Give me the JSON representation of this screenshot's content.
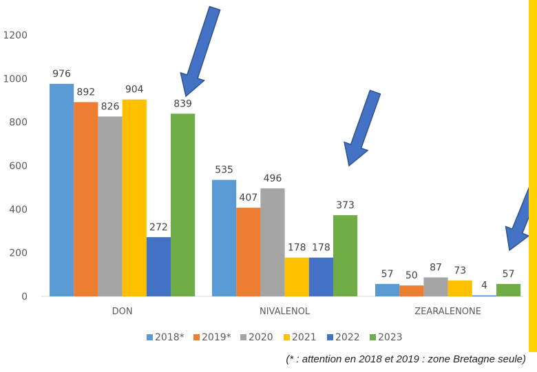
{
  "chart_data": {
    "type": "bar",
    "title": "",
    "xlabel": "",
    "ylabel": "",
    "ylim": [
      0,
      1200
    ],
    "yticks": [
      0,
      200,
      400,
      600,
      800,
      1000,
      1200
    ],
    "grid": false,
    "legend_position": "bottom",
    "categories": [
      "DON",
      "NIVALENOL",
      "ZEARALENONE"
    ],
    "series": [
      {
        "name": "2018*",
        "color": "#5b9bd5",
        "values": [
          976,
          535,
          57
        ]
      },
      {
        "name": "2019*",
        "color": "#ed7d31",
        "values": [
          892,
          407,
          50
        ]
      },
      {
        "name": "2020",
        "color": "#a5a5a5",
        "values": [
          826,
          496,
          87
        ]
      },
      {
        "name": "2021",
        "color": "#ffc000",
        "values": [
          904,
          178,
          73
        ]
      },
      {
        "name": "2022",
        "color": "#4472c4",
        "values": [
          272,
          178,
          4
        ]
      },
      {
        "name": "2023",
        "color": "#70ad47",
        "values": [
          839,
          373,
          57
        ]
      }
    ],
    "annotations": {
      "arrow_color": "#4472c4",
      "arrow_count": 4
    }
  },
  "footnote": "(* : attention en 2018 et 2019 : zone Bretagne seule)",
  "side_strip_color": "#ffd200"
}
